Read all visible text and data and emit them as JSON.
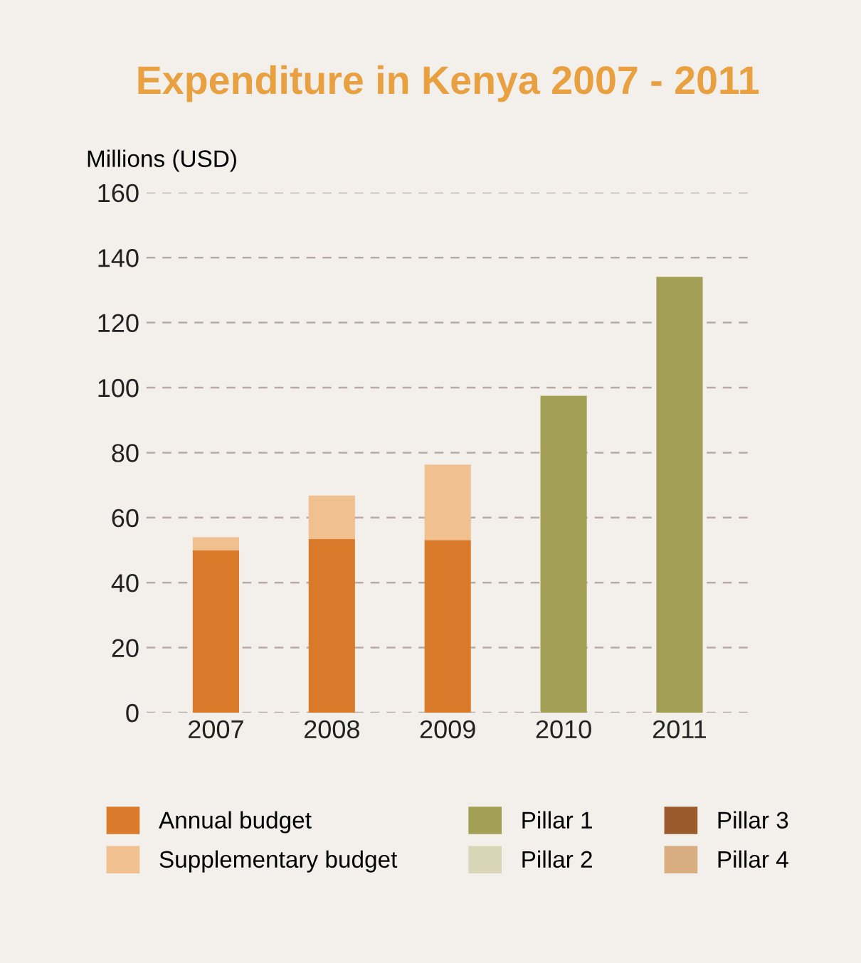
{
  "chart_data": {
    "type": "bar",
    "title": "Expenditure in Kenya 2007 - 2011",
    "ylabel": "Millions (USD)",
    "categories": [
      "2007",
      "2008",
      "2009",
      "2010",
      "2011"
    ],
    "stacked": true,
    "series": [
      {
        "name": "Annual budget",
        "color": "#d97b2b",
        "values": [
          50,
          53.4,
          53.1,
          null,
          null
        ]
      },
      {
        "name": "Supplementary budget",
        "color": "#f0c08e",
        "values": [
          4,
          13.4,
          23.2,
          null,
          null
        ]
      },
      {
        "name": "Pillar 1",
        "color": "#a3a055",
        "values": [
          null,
          null,
          null,
          97.5,
          134.1
        ]
      },
      {
        "name": "Pillar 2",
        "color": "#d9d6b8",
        "values": [
          null,
          null,
          null,
          null,
          null
        ]
      },
      {
        "name": "Pillar 3",
        "color": "#9a5a2c",
        "values": [
          null,
          null,
          null,
          null,
          null
        ]
      },
      {
        "name": "Pillar 4",
        "color": "#d8ae80",
        "values": [
          null,
          null,
          null,
          null,
          null
        ]
      }
    ],
    "ylim": [
      0,
      160
    ],
    "yticks": [
      0,
      20,
      40,
      60,
      80,
      100,
      120,
      140,
      160
    ],
    "grid": "y",
    "legend": "bottom"
  }
}
